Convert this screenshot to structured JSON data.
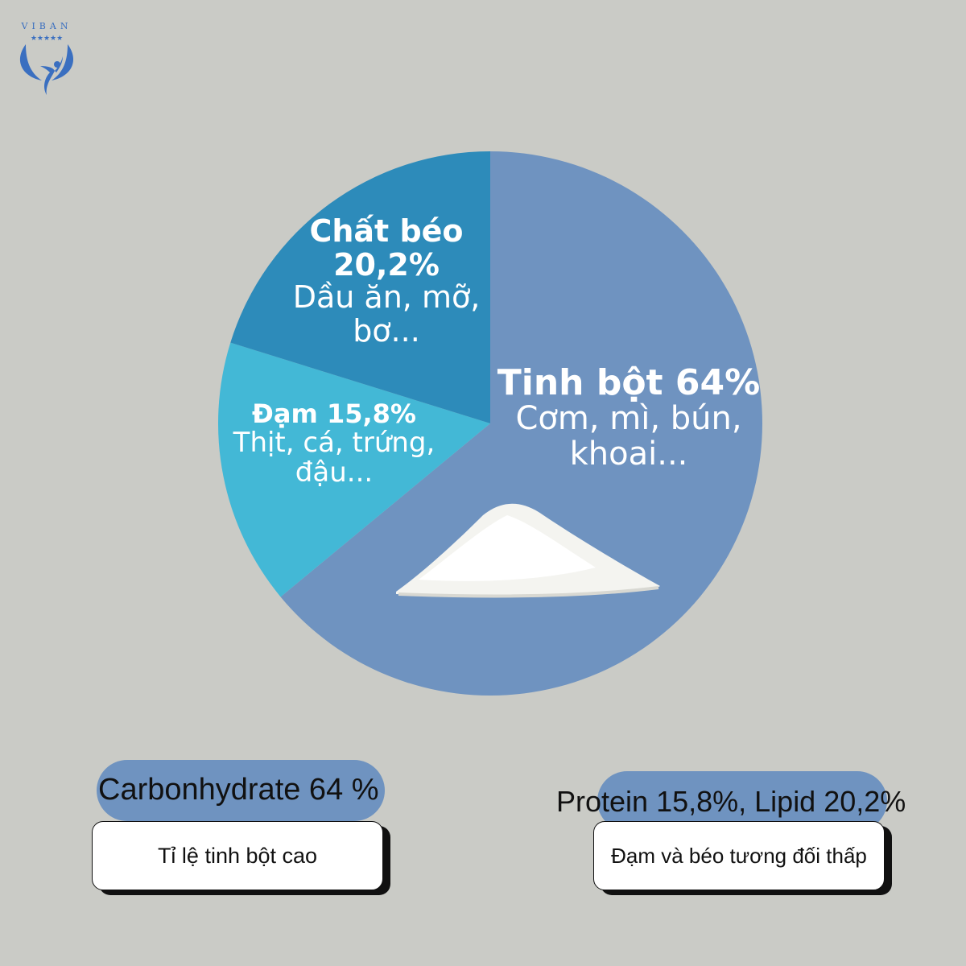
{
  "logo": {
    "text": "VIBAN",
    "color": "#3a6fc0"
  },
  "chart_data": {
    "type": "pie",
    "start": "top",
    "direction": "clockwise",
    "slices": [
      {
        "label": "Tinh bột",
        "value": 64,
        "value_text": "64%",
        "description": "Cơm, mì, bún, khoai...",
        "color": "#6f93c0"
      },
      {
        "label": "Đạm",
        "value": 15.8,
        "value_text": "15,8%",
        "description": "Thịt, cá, trứng, đậu...",
        "color": "#43b8d6"
      },
      {
        "label": "Chất béo",
        "value": 20.2,
        "value_text": "20,2%",
        "description": "Dầu ăn, mỡ, bơ...",
        "color": "#2d8bba"
      }
    ]
  },
  "summary": {
    "left": {
      "headline": "Carbonhydrate 64 %",
      "note": "Tỉ lệ tinh bột cao"
    },
    "right": {
      "headline": "Protein 15,8%, Lipid 20,2%",
      "note": "Đạm và béo tương đối thấp"
    }
  }
}
